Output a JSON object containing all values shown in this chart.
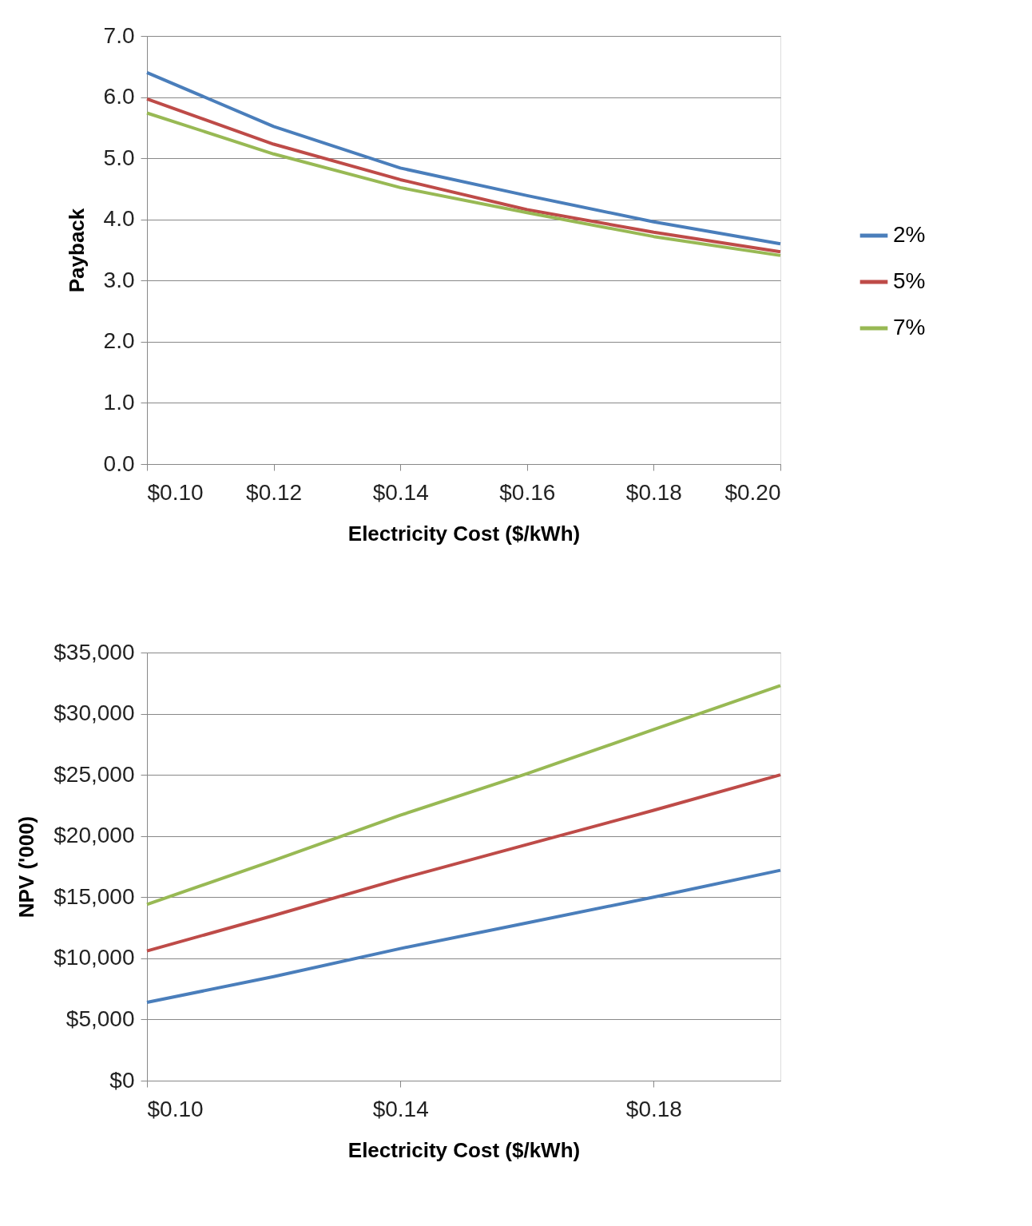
{
  "chart_data": [
    {
      "type": "line",
      "xlabel": "Electricity Cost ($/kWh)",
      "ylabel": "Payback",
      "x": [
        0.1,
        0.12,
        0.14,
        0.16,
        0.18,
        0.2
      ],
      "series": [
        {
          "name": "2%",
          "color": "#4a7ebb",
          "values": [
            6.4,
            5.52,
            4.84,
            4.39,
            3.96,
            3.6
          ]
        },
        {
          "name": "5%",
          "color": "#be4b48",
          "values": [
            5.97,
            5.23,
            4.65,
            4.16,
            3.79,
            3.47
          ]
        },
        {
          "name": "7%",
          "color": "#98b954",
          "values": [
            5.74,
            5.07,
            4.52,
            4.11,
            3.72,
            3.41
          ]
        }
      ],
      "xlim": [
        0.1,
        0.2
      ],
      "xticks": [
        {
          "value": 0.1,
          "label": "$0.10"
        },
        {
          "value": 0.12,
          "label": "$0.12"
        },
        {
          "value": 0.14,
          "label": "$0.14"
        },
        {
          "value": 0.16,
          "label": "$0.16"
        },
        {
          "value": 0.18,
          "label": "$0.18"
        },
        {
          "value": 0.2,
          "label": "$0.20"
        }
      ],
      "ylim": [
        0,
        7
      ],
      "yticks": [
        {
          "value": 0,
          "label": "0.0"
        },
        {
          "value": 1,
          "label": "1.0"
        },
        {
          "value": 2,
          "label": "2.0"
        },
        {
          "value": 3,
          "label": "3.0"
        },
        {
          "value": 4,
          "label": "4.0"
        },
        {
          "value": 5,
          "label": "5.0"
        },
        {
          "value": 6,
          "label": "6.0"
        },
        {
          "value": 7,
          "label": "7.0"
        }
      ],
      "grid": "y",
      "legend": "right",
      "marker": "none",
      "line_style": "solid"
    },
    {
      "type": "line",
      "xlabel": "Electricity Cost ($/kWh)",
      "ylabel": "NPV ('000)",
      "x": [
        0.1,
        0.12,
        0.14,
        0.16,
        0.18,
        0.2
      ],
      "series": [
        {
          "name": "2%",
          "color": "#4a7ebb",
          "values": [
            6400,
            8500,
            10800,
            12900,
            15000,
            17200
          ]
        },
        {
          "name": "5%",
          "color": "#be4b48",
          "values": [
            10600,
            13500,
            16500,
            19300,
            22100,
            25000
          ]
        },
        {
          "name": "7%",
          "color": "#98b954",
          "values": [
            14400,
            18000,
            21700,
            25100,
            28700,
            32300
          ]
        }
      ],
      "xlim": [
        0.1,
        0.2
      ],
      "xticks": [
        {
          "value": 0.1,
          "label": "$0.10"
        },
        {
          "value": 0.14,
          "label": "$0.14"
        },
        {
          "value": 0.18,
          "label": "$0.18"
        }
      ],
      "ylim": [
        0,
        35000
      ],
      "yticks": [
        {
          "value": 0,
          "label": "$0"
        },
        {
          "value": 5000,
          "label": "$5,000"
        },
        {
          "value": 10000,
          "label": "$10,000"
        },
        {
          "value": 15000,
          "label": "$15,000"
        },
        {
          "value": 20000,
          "label": "$20,000"
        },
        {
          "value": 25000,
          "label": "$25,000"
        },
        {
          "value": 30000,
          "label": "$30,000"
        },
        {
          "value": 35000,
          "label": "$35,000"
        }
      ],
      "grid": "y",
      "legend": "right",
      "marker": "none",
      "line_style": "solid"
    }
  ]
}
